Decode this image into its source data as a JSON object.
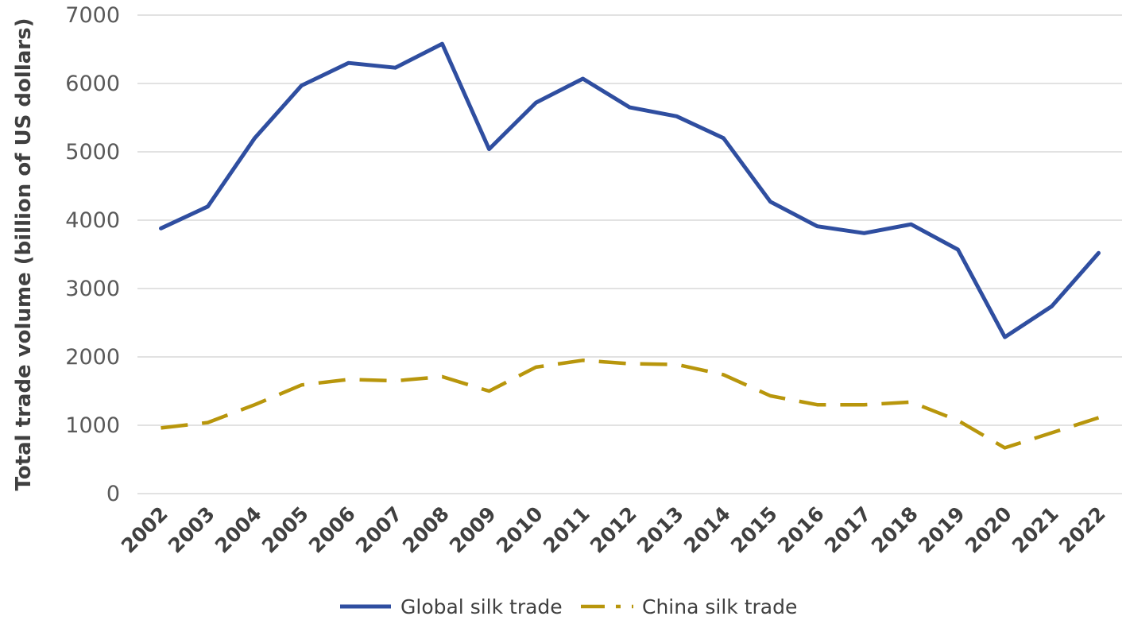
{
  "chart_data": {
    "type": "line",
    "title": "",
    "xlabel": "",
    "ylabel": "Total trade volume (billion of US dollars)",
    "ylim": [
      0,
      7000
    ],
    "yticks": [
      "0",
      "1000",
      "2000",
      "3000",
      "4000",
      "5000",
      "6000",
      "7000"
    ],
    "grid": true,
    "legend_position": "bottom",
    "categories": [
      "2002",
      "2003",
      "2004",
      "2005",
      "2006",
      "2007",
      "2008",
      "2009",
      "2010",
      "2011",
      "2012",
      "2013",
      "2014",
      "2015",
      "2016",
      "2017",
      "2018",
      "2019",
      "2020",
      "2021",
      "2022"
    ],
    "series": [
      {
        "name": "Global silk trade",
        "color": "#2f4ea0",
        "style": "solid",
        "values": [
          3880,
          4200,
          5200,
          5970,
          6300,
          6230,
          6580,
          5040,
          5720,
          6070,
          5650,
          5520,
          5200,
          4270,
          3910,
          3810,
          3940,
          3570,
          2290,
          2740,
          3520
        ]
      },
      {
        "name": "China silk trade",
        "color": "#b8960c",
        "style": "dashed",
        "values": [
          960,
          1040,
          1300,
          1590,
          1670,
          1650,
          1710,
          1500,
          1850,
          1950,
          1900,
          1890,
          1740,
          1430,
          1300,
          1300,
          1340,
          1070,
          670,
          890,
          1110
        ]
      }
    ]
  }
}
